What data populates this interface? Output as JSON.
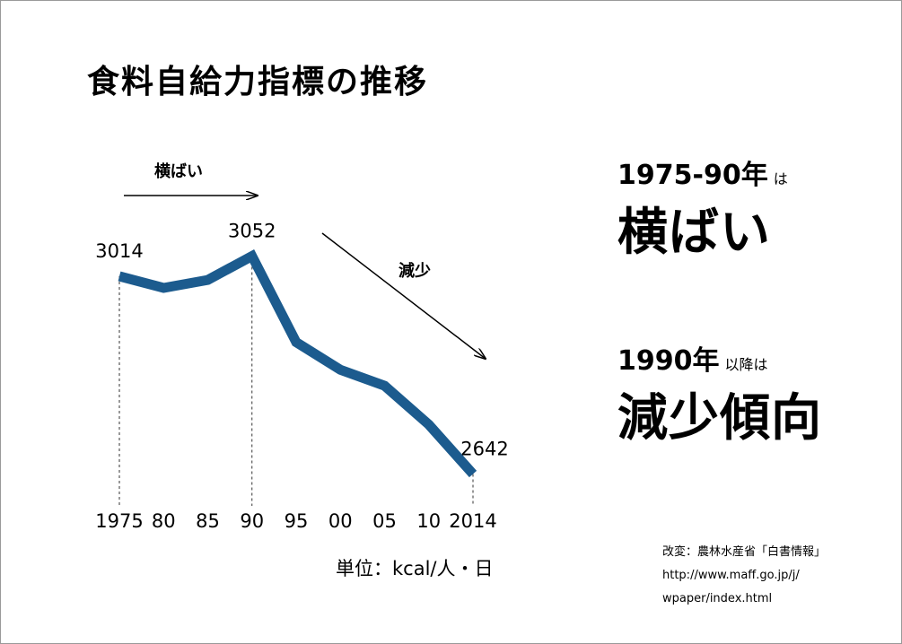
{
  "title": "食料自給力指標の推移",
  "chart_data": {
    "type": "line",
    "x": [
      "1975",
      "80",
      "85",
      "90",
      "95",
      "00",
      "05",
      "10",
      "2014"
    ],
    "series": [
      {
        "values": [
          3014,
          2992,
          3007,
          3052,
          2890,
          2838,
          2808,
          2735,
          2642
        ],
        "color": "#1c5b8e"
      }
    ],
    "data_labels": [
      {
        "index": 0,
        "text": "3014"
      },
      {
        "index": 3,
        "text": "3052"
      },
      {
        "index": 8,
        "text": "2642"
      }
    ],
    "ylim": [
      2540,
      3100
    ],
    "grid": false,
    "annotations": [
      {
        "text": "横ばい",
        "from_index": 0,
        "to_index": 3
      },
      {
        "text": "減少",
        "from_index": 4,
        "to_index": 8
      }
    ],
    "unit_label": "単位：kcal/人・日"
  },
  "right_panel": {
    "block1": {
      "year": "1975-90年",
      "note": "は",
      "phrase": "横ばい"
    },
    "block2": {
      "year": "1990年",
      "note": "以降は",
      "phrase": "減少傾向"
    }
  },
  "source": {
    "line1": "改変：農林水産省「白書情報」",
    "line2": "http://www.maff.go.jp/j/",
    "line3": "wpaper/index.html"
  }
}
